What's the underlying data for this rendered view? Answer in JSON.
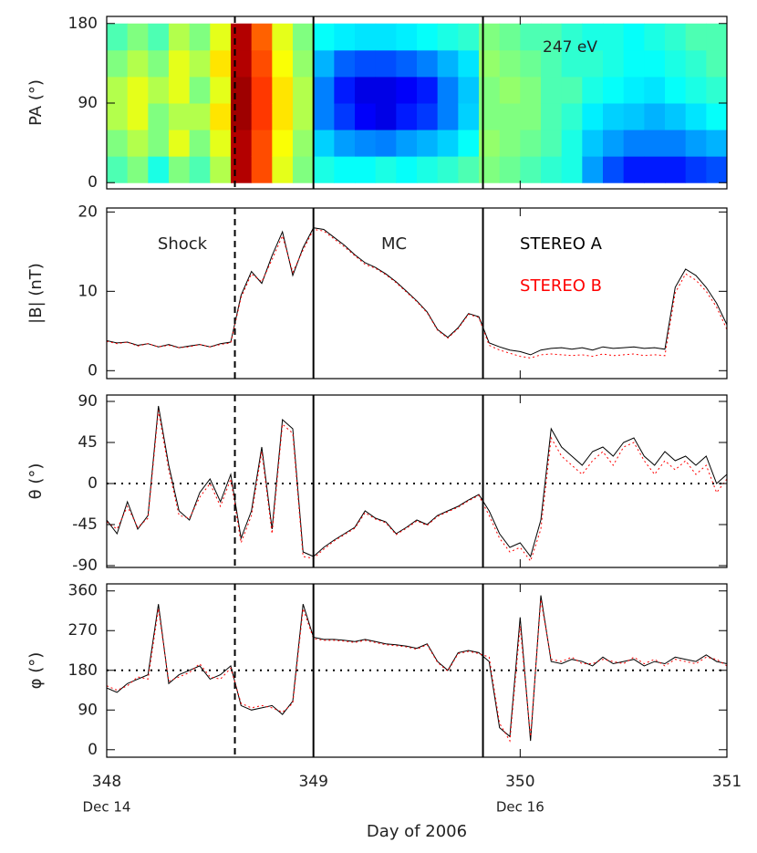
{
  "chart_data": [
    {
      "type": "heatmap",
      "ylabel": "PA (°)",
      "annotation": "247 eV",
      "colormap": "jet",
      "xlim": [
        348,
        351
      ],
      "xticks": [
        348,
        349,
        350,
        351
      ],
      "ylim": [
        -7,
        188
      ],
      "yticks": [
        0,
        90,
        180
      ],
      "xbins": [
        348,
        348.1,
        348.2,
        348.3,
        348.4,
        348.5,
        348.6,
        348.7,
        348.8,
        348.9,
        349,
        349.1,
        349.2,
        349.3,
        349.4,
        349.5,
        349.6,
        349.7,
        349.8,
        349.9,
        350,
        350.1,
        350.2,
        350.3,
        350.4,
        350.5,
        350.6,
        350.7,
        350.8,
        350.9,
        351
      ],
      "ybins": [
        0,
        30,
        60,
        90,
        120,
        150,
        180
      ],
      "z": [
        [
          0.45,
          0.5,
          0.55,
          0.55,
          0.5,
          0.45
        ],
        [
          0.5,
          0.55,
          0.6,
          0.6,
          0.55,
          0.5
        ],
        [
          0.4,
          0.5,
          0.5,
          0.55,
          0.5,
          0.45
        ],
        [
          0.5,
          0.6,
          0.55,
          0.6,
          0.6,
          0.55
        ],
        [
          0.45,
          0.5,
          0.55,
          0.5,
          0.55,
          0.5
        ],
        [
          0.55,
          0.6,
          0.65,
          0.6,
          0.65,
          0.6
        ],
        [
          0.95,
          0.95,
          0.97,
          0.97,
          0.95,
          0.95
        ],
        [
          0.8,
          0.8,
          0.82,
          0.82,
          0.8,
          0.78
        ],
        [
          0.6,
          0.62,
          0.65,
          0.65,
          0.62,
          0.6
        ],
        [
          0.5,
          0.52,
          0.55,
          0.55,
          0.52,
          0.5
        ],
        [
          0.4,
          0.33,
          0.25,
          0.25,
          0.3,
          0.38
        ],
        [
          0.38,
          0.28,
          0.18,
          0.15,
          0.22,
          0.36
        ],
        [
          0.38,
          0.26,
          0.12,
          0.1,
          0.2,
          0.35
        ],
        [
          0.4,
          0.25,
          0.1,
          0.1,
          0.2,
          0.35
        ],
        [
          0.38,
          0.28,
          0.15,
          0.12,
          0.22,
          0.36
        ],
        [
          0.4,
          0.3,
          0.18,
          0.15,
          0.25,
          0.38
        ],
        [
          0.42,
          0.33,
          0.25,
          0.25,
          0.3,
          0.4
        ],
        [
          0.45,
          0.38,
          0.33,
          0.32,
          0.35,
          0.42
        ],
        [
          0.5,
          0.52,
          0.5,
          0.5,
          0.52,
          0.5
        ],
        [
          0.48,
          0.5,
          0.5,
          0.52,
          0.5,
          0.48
        ],
        [
          0.45,
          0.48,
          0.5,
          0.5,
          0.48,
          0.45
        ],
        [
          0.42,
          0.45,
          0.45,
          0.45,
          0.45,
          0.45
        ],
        [
          0.4,
          0.4,
          0.42,
          0.45,
          0.42,
          0.42
        ],
        [
          0.28,
          0.32,
          0.36,
          0.4,
          0.42,
          0.4
        ],
        [
          0.2,
          0.28,
          0.33,
          0.38,
          0.4,
          0.4
        ],
        [
          0.15,
          0.25,
          0.32,
          0.36,
          0.38,
          0.38
        ],
        [
          0.15,
          0.25,
          0.3,
          0.35,
          0.38,
          0.4
        ],
        [
          0.15,
          0.25,
          0.32,
          0.38,
          0.4,
          0.42
        ],
        [
          0.18,
          0.28,
          0.35,
          0.4,
          0.42,
          0.45
        ],
        [
          0.2,
          0.3,
          0.38,
          0.42,
          0.45,
          0.45
        ]
      ],
      "vlines": [
        {
          "x": 348.62,
          "style": "dashed"
        },
        {
          "x": 349.0,
          "style": "solid"
        },
        {
          "x": 349.82,
          "style": "solid"
        }
      ]
    },
    {
      "type": "line",
      "ylabel": "|B| (nT)",
      "annotations": [
        "Shock",
        "MC"
      ],
      "legend": "upper right",
      "xlim": [
        348,
        351
      ],
      "xticks": [
        348,
        349,
        350,
        351
      ],
      "ylim": [
        -1,
        20.5
      ],
      "yticks": [
        0,
        10,
        20
      ],
      "x": [
        348,
        348.05,
        348.1,
        348.15,
        348.2,
        348.25,
        348.3,
        348.35,
        348.4,
        348.45,
        348.5,
        348.55,
        348.6,
        348.65,
        348.7,
        348.75,
        348.8,
        348.85,
        348.9,
        348.95,
        349,
        349.05,
        349.1,
        349.15,
        349.2,
        349.25,
        349.3,
        349.35,
        349.4,
        349.45,
        349.5,
        349.55,
        349.6,
        349.65,
        349.7,
        349.75,
        349.8,
        349.85,
        349.9,
        349.95,
        350,
        350.05,
        350.1,
        350.15,
        350.2,
        350.25,
        350.3,
        350.35,
        350.4,
        350.45,
        350.5,
        350.55,
        350.6,
        350.65,
        350.7,
        350.75,
        350.8,
        350.85,
        350.9,
        350.95,
        351
      ],
      "series": [
        {
          "name": "STEREO A",
          "color": "#000000",
          "linestyle": "solid",
          "values": [
            3.8,
            3.5,
            3.6,
            3.2,
            3.4,
            3.0,
            3.3,
            2.9,
            3.1,
            3.3,
            3.0,
            3.4,
            3.6,
            9.5,
            12.5,
            11,
            14.5,
            17.5,
            12,
            15.5,
            18,
            17.8,
            16.8,
            15.8,
            14.6,
            13.6,
            13,
            12.2,
            11.2,
            10,
            8.8,
            7.4,
            5.2,
            4.2,
            5.4,
            7.2,
            6.8,
            3.5,
            3.0,
            2.6,
            2.4,
            2.0,
            2.6,
            2.8,
            2.9,
            2.7,
            2.9,
            2.6,
            3.0,
            2.8,
            2.9,
            3.0,
            2.8,
            2.9,
            2.7,
            10.5,
            12.8,
            12,
            10.5,
            8.5,
            5.8
          ]
        },
        {
          "name": "STEREO B",
          "color": "#ff0000",
          "linestyle": "dotted",
          "values": [
            3.7,
            3.4,
            3.6,
            3.1,
            3.4,
            3.0,
            3.2,
            2.9,
            3.0,
            3.3,
            3.0,
            3.3,
            3.5,
            9.2,
            12.2,
            11.2,
            14,
            17,
            12.4,
            15.2,
            17.8,
            17.6,
            16.6,
            15.6,
            14.5,
            13.4,
            12.9,
            12.1,
            11.1,
            9.9,
            8.7,
            7.3,
            5.1,
            4.1,
            5.3,
            7.1,
            6.7,
            3.2,
            2.6,
            2.2,
            1.8,
            1.6,
            2.0,
            2.1,
            2.0,
            1.9,
            2.0,
            1.8,
            2.1,
            1.9,
            2.0,
            2.1,
            1.9,
            2.0,
            1.9,
            9.8,
            12.2,
            11.4,
            10,
            8.0,
            5.2
          ]
        }
      ],
      "vlines": [
        {
          "x": 348.62,
          "style": "dashed"
        },
        {
          "x": 349.0,
          "style": "solid"
        },
        {
          "x": 349.82,
          "style": "solid"
        }
      ]
    },
    {
      "type": "line",
      "ylabel": "θ (°)",
      "hline": 0,
      "xlim": [
        348,
        351
      ],
      "xticks": [
        348,
        349,
        350,
        351
      ],
      "ylim": [
        -92,
        97
      ],
      "yticks": [
        -90,
        -45,
        0,
        45,
        90
      ],
      "x": [
        348,
        348.05,
        348.1,
        348.15,
        348.2,
        348.25,
        348.3,
        348.35,
        348.4,
        348.45,
        348.5,
        348.55,
        348.6,
        348.65,
        348.7,
        348.75,
        348.8,
        348.85,
        348.9,
        348.95,
        349,
        349.05,
        349.1,
        349.15,
        349.2,
        349.25,
        349.3,
        349.35,
        349.4,
        349.45,
        349.5,
        349.55,
        349.6,
        349.65,
        349.7,
        349.75,
        349.8,
        349.85,
        349.9,
        349.95,
        350,
        350.05,
        350.1,
        350.15,
        350.2,
        350.25,
        350.3,
        350.35,
        350.4,
        350.45,
        350.5,
        350.55,
        350.6,
        350.65,
        350.7,
        350.75,
        350.8,
        350.85,
        350.9,
        350.95,
        351
      ],
      "series": [
        {
          "name": "STEREO A",
          "color": "#000000",
          "linestyle": "solid",
          "values": [
            -40,
            -55,
            -20,
            -50,
            -35,
            85,
            20,
            -30,
            -40,
            -10,
            5,
            -20,
            10,
            -60,
            -30,
            40,
            -50,
            70,
            60,
            -75,
            -80,
            -70,
            -62,
            -55,
            -48,
            -30,
            -38,
            -42,
            -55,
            -48,
            -40,
            -45,
            -35,
            -30,
            -25,
            -18,
            -12,
            -30,
            -55,
            -70,
            -65,
            -80,
            -40,
            60,
            40,
            30,
            20,
            35,
            40,
            30,
            45,
            50,
            30,
            20,
            35,
            25,
            30,
            20,
            30,
            0,
            10
          ]
        },
        {
          "name": "STEREO B",
          "color": "#ff0000",
          "linestyle": "dotted",
          "values": [
            -42,
            -50,
            -25,
            -48,
            -38,
            80,
            15,
            -35,
            -38,
            -15,
            0,
            -25,
            5,
            -65,
            -35,
            35,
            -55,
            65,
            55,
            -80,
            -82,
            -72,
            -63,
            -56,
            -49,
            -32,
            -39,
            -43,
            -56,
            -49,
            -41,
            -46,
            -36,
            -31,
            -26,
            -19,
            -13,
            -35,
            -60,
            -75,
            -70,
            -85,
            -50,
            50,
            30,
            20,
            10,
            25,
            35,
            20,
            40,
            45,
            25,
            10,
            25,
            15,
            25,
            10,
            20,
            -10,
            5
          ]
        }
      ],
      "vlines": [
        {
          "x": 348.62,
          "style": "dashed"
        },
        {
          "x": 349.0,
          "style": "solid"
        },
        {
          "x": 349.82,
          "style": "solid"
        }
      ]
    },
    {
      "type": "line",
      "ylabel": "φ (°)",
      "hline": 180,
      "xlabel": "Day of 2006",
      "show_xtick_labels": true,
      "xtick_sublabels": [
        {
          "value": 348,
          "label": "Dec 14"
        },
        {
          "value": 350,
          "label": "Dec 16"
        }
      ],
      "xlim": [
        348,
        351
      ],
      "xticks": [
        348,
        349,
        350,
        351
      ],
      "ylim": [
        -17,
        376
      ],
      "yticks": [
        0,
        90,
        180,
        270,
        360
      ],
      "x": [
        348,
        348.05,
        348.1,
        348.15,
        348.2,
        348.25,
        348.3,
        348.35,
        348.4,
        348.45,
        348.5,
        348.55,
        348.6,
        348.65,
        348.7,
        348.75,
        348.8,
        348.85,
        348.9,
        348.95,
        349,
        349.05,
        349.1,
        349.15,
        349.2,
        349.25,
        349.3,
        349.35,
        349.4,
        349.45,
        349.5,
        349.55,
        349.6,
        349.65,
        349.7,
        349.75,
        349.8,
        349.85,
        349.9,
        349.95,
        350,
        350.05,
        350.1,
        350.15,
        350.2,
        350.25,
        350.3,
        350.35,
        350.4,
        350.45,
        350.5,
        350.55,
        350.6,
        350.65,
        350.7,
        350.75,
        350.8,
        350.85,
        350.9,
        350.95,
        351
      ],
      "series": [
        {
          "name": "STEREO A",
          "color": "#000000",
          "linestyle": "solid",
          "values": [
            140,
            130,
            150,
            160,
            170,
            330,
            150,
            170,
            180,
            190,
            160,
            170,
            190,
            100,
            90,
            95,
            100,
            80,
            110,
            330,
            255,
            250,
            250,
            248,
            245,
            250,
            245,
            240,
            238,
            235,
            230,
            240,
            200,
            180,
            220,
            225,
            220,
            200,
            50,
            30,
            300,
            20,
            350,
            200,
            195,
            205,
            200,
            190,
            210,
            195,
            200,
            205,
            190,
            200,
            195,
            210,
            205,
            200,
            215,
            200,
            195
          ]
        },
        {
          "name": "STEREO B",
          "color": "#ff0000",
          "linestyle": "dotted",
          "values": [
            145,
            135,
            145,
            165,
            160,
            320,
            155,
            165,
            175,
            195,
            165,
            160,
            185,
            105,
            95,
            100,
            95,
            85,
            105,
            320,
            252,
            248,
            248,
            246,
            243,
            248,
            243,
            238,
            236,
            233,
            228,
            238,
            198,
            178,
            218,
            223,
            218,
            210,
            60,
            20,
            280,
            30,
            340,
            205,
            200,
            210,
            195,
            195,
            205,
            200,
            195,
            210,
            195,
            205,
            190,
            205,
            200,
            195,
            210,
            205,
            190
          ]
        }
      ],
      "vlines": [
        {
          "x": 348.62,
          "style": "dashed"
        },
        {
          "x": 349.0,
          "style": "solid"
        },
        {
          "x": 349.82,
          "style": "solid"
        }
      ]
    }
  ]
}
